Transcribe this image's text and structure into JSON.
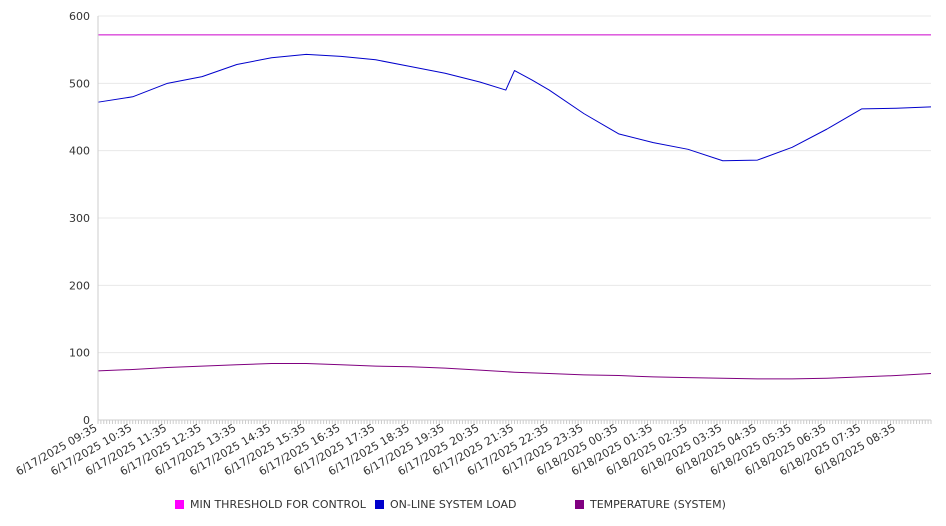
{
  "chart_data": {
    "type": "line",
    "x_ticks": [
      "6/17/2025 09:35",
      "6/17/2025 10:35",
      "6/17/2025 11:35",
      "6/17/2025 12:35",
      "6/17/2025 13:35",
      "6/17/2025 14:35",
      "6/17/2025 15:35",
      "6/17/2025 16:35",
      "6/17/2025 17:35",
      "6/17/2025 18:35",
      "6/17/2025 19:35",
      "6/17/2025 20:35",
      "6/17/2025 21:35",
      "6/17/2025 22:35",
      "6/17/2025 23:35",
      "6/18/2025 00:35",
      "6/18/2025 01:35",
      "6/18/2025 02:35",
      "6/18/2025 03:35",
      "6/18/2025 04:35",
      "6/18/2025 05:35",
      "6/18/2025 06:35",
      "6/18/2025 07:35",
      "6/18/2025 08:35"
    ],
    "y_ticks": [
      0,
      100,
      200,
      300,
      400,
      500,
      600
    ],
    "ylim": [
      0,
      600
    ],
    "grid": true,
    "legend_position": "bottom",
    "series": [
      {
        "name": "MIN THRESHOLD FOR CONTROL",
        "color": "#cc00cc",
        "x": [
          "6/17/2025 09:35",
          "6/18/2025 09:35"
        ],
        "values": [
          572,
          572
        ]
      },
      {
        "name": "ON-LINE SYSTEM LOAD",
        "color": "#0000cc",
        "x": [
          "6/17/2025 09:35",
          "6/17/2025 10:35",
          "6/17/2025 11:35",
          "6/17/2025 12:35",
          "6/17/2025 13:35",
          "6/17/2025 14:35",
          "6/17/2025 15:35",
          "6/17/2025 16:35",
          "6/17/2025 17:35",
          "6/17/2025 18:35",
          "6/17/2025 19:35",
          "6/17/2025 20:35",
          "6/17/2025 21:20",
          "6/17/2025 21:35",
          "6/17/2025 22:05",
          "6/17/2025 22:35",
          "6/17/2025 23:35",
          "6/18/2025 00:35",
          "6/18/2025 01:35",
          "6/18/2025 02:35",
          "6/18/2025 03:35",
          "6/18/2025 04:35",
          "6/18/2025 05:35",
          "6/18/2025 06:35",
          "6/18/2025 07:35",
          "6/18/2025 08:35",
          "6/18/2025 09:35"
        ],
        "values": [
          472,
          480,
          500,
          510,
          528,
          538,
          543,
          540,
          535,
          525,
          515,
          502,
          490,
          519,
          505,
          490,
          455,
          425,
          412,
          402,
          385,
          386,
          405,
          432,
          462,
          463,
          465
        ]
      },
      {
        "name": "TEMPERATURE (SYSTEM)",
        "color": "#800080",
        "x": [
          "6/17/2025 09:35",
          "6/17/2025 10:35",
          "6/17/2025 11:35",
          "6/17/2025 12:35",
          "6/17/2025 13:35",
          "6/17/2025 14:35",
          "6/17/2025 15:35",
          "6/17/2025 16:35",
          "6/17/2025 17:35",
          "6/17/2025 18:35",
          "6/17/2025 19:35",
          "6/17/2025 20:35",
          "6/17/2025 21:35",
          "6/17/2025 22:35",
          "6/17/2025 23:35",
          "6/18/2025 00:35",
          "6/18/2025 01:35",
          "6/18/2025 02:35",
          "6/18/2025 03:35",
          "6/18/2025 04:35",
          "6/18/2025 05:35",
          "6/18/2025 06:35",
          "6/18/2025 07:35",
          "6/18/2025 08:35",
          "6/18/2025 09:35"
        ],
        "values": [
          73,
          75,
          78,
          80,
          82,
          84,
          84,
          82,
          80,
          79,
          77,
          74,
          71,
          69,
          67,
          66,
          64,
          63,
          62,
          61,
          61,
          62,
          64,
          66,
          69
        ]
      }
    ]
  }
}
